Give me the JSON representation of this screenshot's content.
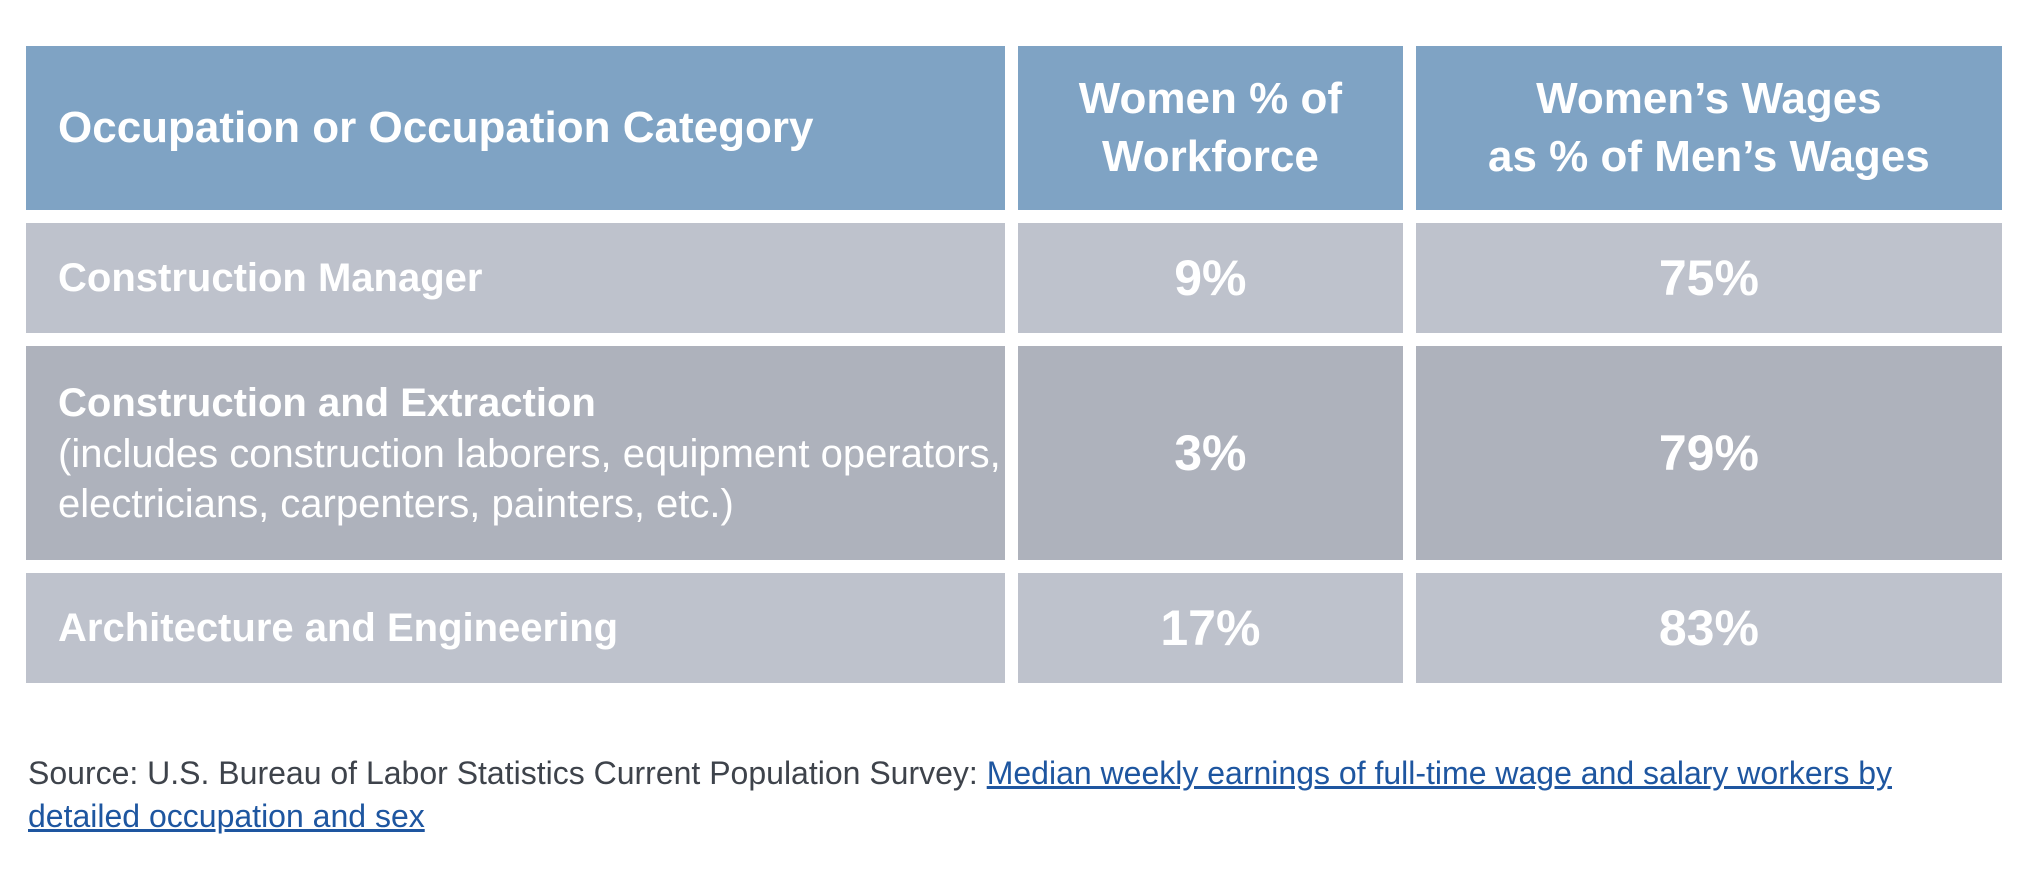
{
  "table": {
    "headers": {
      "occupation": "Occupation or Occupation Category",
      "women_pct_line1": "Women % of",
      "women_pct_line2": "Workforce",
      "wages_line1": "Women’s Wages",
      "wages_line2": "as % of Men’s Wages"
    },
    "rows": [
      {
        "title": "Construction Manager",
        "description": "",
        "women_pct": "9%",
        "wages_pct": "75%"
      },
      {
        "title": "Construction and Extraction",
        "description": "(includes construction laborers, equipment operators, electricians, carpenters, painters, etc.)",
        "women_pct": "3%",
        "wages_pct": "79%"
      },
      {
        "title": "Architecture and Engineering",
        "description": "",
        "women_pct": "17%",
        "wages_pct": "83%"
      }
    ]
  },
  "source": {
    "prefix": "Source: U.S. Bureau of Labor Statistics Current Population Survey:",
    "link_text": "Median weekly earnings of full-time wage and salary workers by detailed occupation and sex"
  },
  "colors": {
    "header_bg": "#7fa3c4",
    "row_light_bg": "#bec2cc",
    "row_dark_bg": "#aeb2bc",
    "link": "#1e56a0"
  }
}
